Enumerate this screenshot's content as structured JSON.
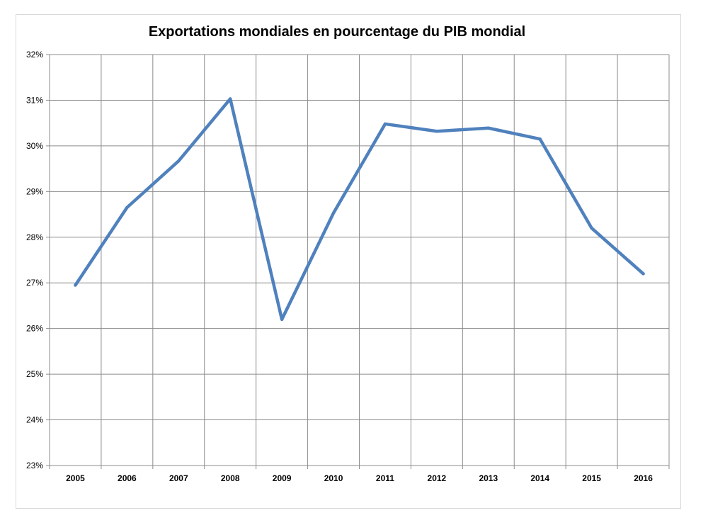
{
  "chart_data": {
    "type": "line",
    "title": "Exportations mondiales en pourcentage du PIB mondial",
    "xlabel": "",
    "ylabel": "",
    "categories": [
      "2005",
      "2006",
      "2007",
      "2008",
      "2009",
      "2010",
      "2011",
      "2012",
      "2013",
      "2014",
      "2015",
      "2016"
    ],
    "series": [
      {
        "values": [
          26.95,
          28.65,
          29.67,
          31.03,
          26.2,
          28.53,
          30.48,
          30.32,
          30.39,
          30.15,
          28.2,
          27.2
        ]
      }
    ],
    "ylim": [
      23,
      32
    ],
    "y_ticks": [
      "23%",
      "24%",
      "25%",
      "26%",
      "27%",
      "28%",
      "29%",
      "30%",
      "31%",
      "32%"
    ],
    "grid": true,
    "line_color": "#4f81bd",
    "legend": "none"
  }
}
